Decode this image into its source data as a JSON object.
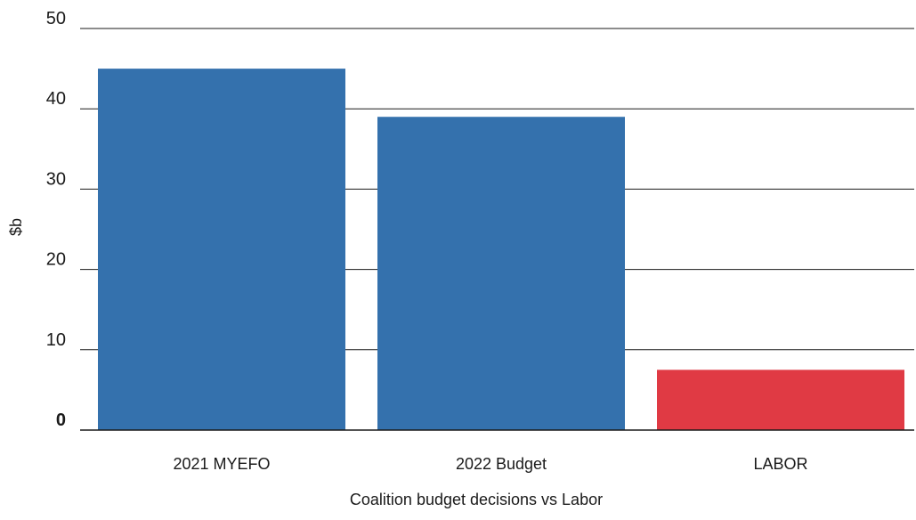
{
  "chart_data": {
    "type": "bar",
    "title": "",
    "xlabel": "Coalition budget decisions vs Labor",
    "ylabel": "$b",
    "ylim": [
      0,
      50
    ],
    "yticks": [
      0,
      10,
      20,
      30,
      40,
      50
    ],
    "grid": true,
    "legend": "none",
    "categories": [
      "2021 MYEFO",
      "2022 Budget",
      "LABOR"
    ],
    "values": [
      45,
      39,
      7.5
    ],
    "colors": [
      "#3471ad",
      "#3471ad",
      "#e03a44"
    ]
  }
}
